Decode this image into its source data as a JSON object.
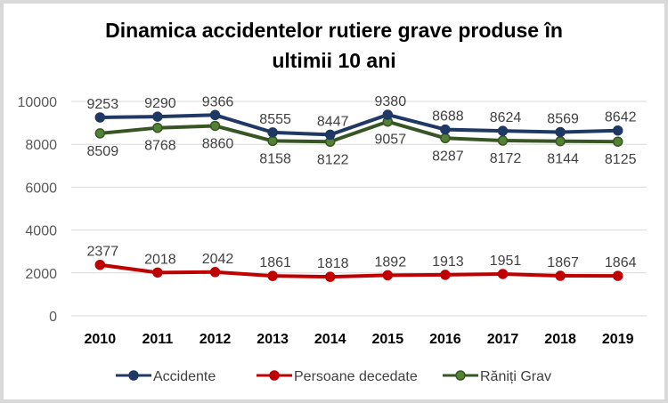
{
  "chart_data": {
    "type": "line",
    "title": "Dinamica accidentelor rutiere grave produse în ultimii 10 ani",
    "title_lines": [
      "Dinamica accidentelor rutiere grave produse în",
      "ultimii 10 ani"
    ],
    "categories": [
      "2010",
      "2011",
      "2012",
      "2013",
      "2014",
      "2015",
      "2016",
      "2017",
      "2018",
      "2019"
    ],
    "xlabel": "",
    "ylabel": "",
    "ylim": [
      0,
      10000
    ],
    "yticks": [
      0,
      2000,
      4000,
      6000,
      8000,
      10000
    ],
    "grid": true,
    "legend_position": "bottom",
    "series": [
      {
        "name": "Accidente",
        "color": "#1f3864",
        "values": [
          9253,
          9290,
          9366,
          8555,
          8447,
          9380,
          8688,
          8624,
          8569,
          8642
        ],
        "label_pos": "above"
      },
      {
        "name": "Persoane decedate",
        "color": "#c00000",
        "values": [
          2377,
          2018,
          2042,
          1861,
          1818,
          1892,
          1913,
          1951,
          1867,
          1864
        ],
        "label_pos": "above"
      },
      {
        "name": "Răniți Grav",
        "color": "#375623",
        "marker_fill": "#548235",
        "values": [
          8509,
          8768,
          8860,
          8158,
          8122,
          9057,
          8287,
          8172,
          8144,
          8125
        ],
        "label_pos": "below"
      }
    ]
  }
}
